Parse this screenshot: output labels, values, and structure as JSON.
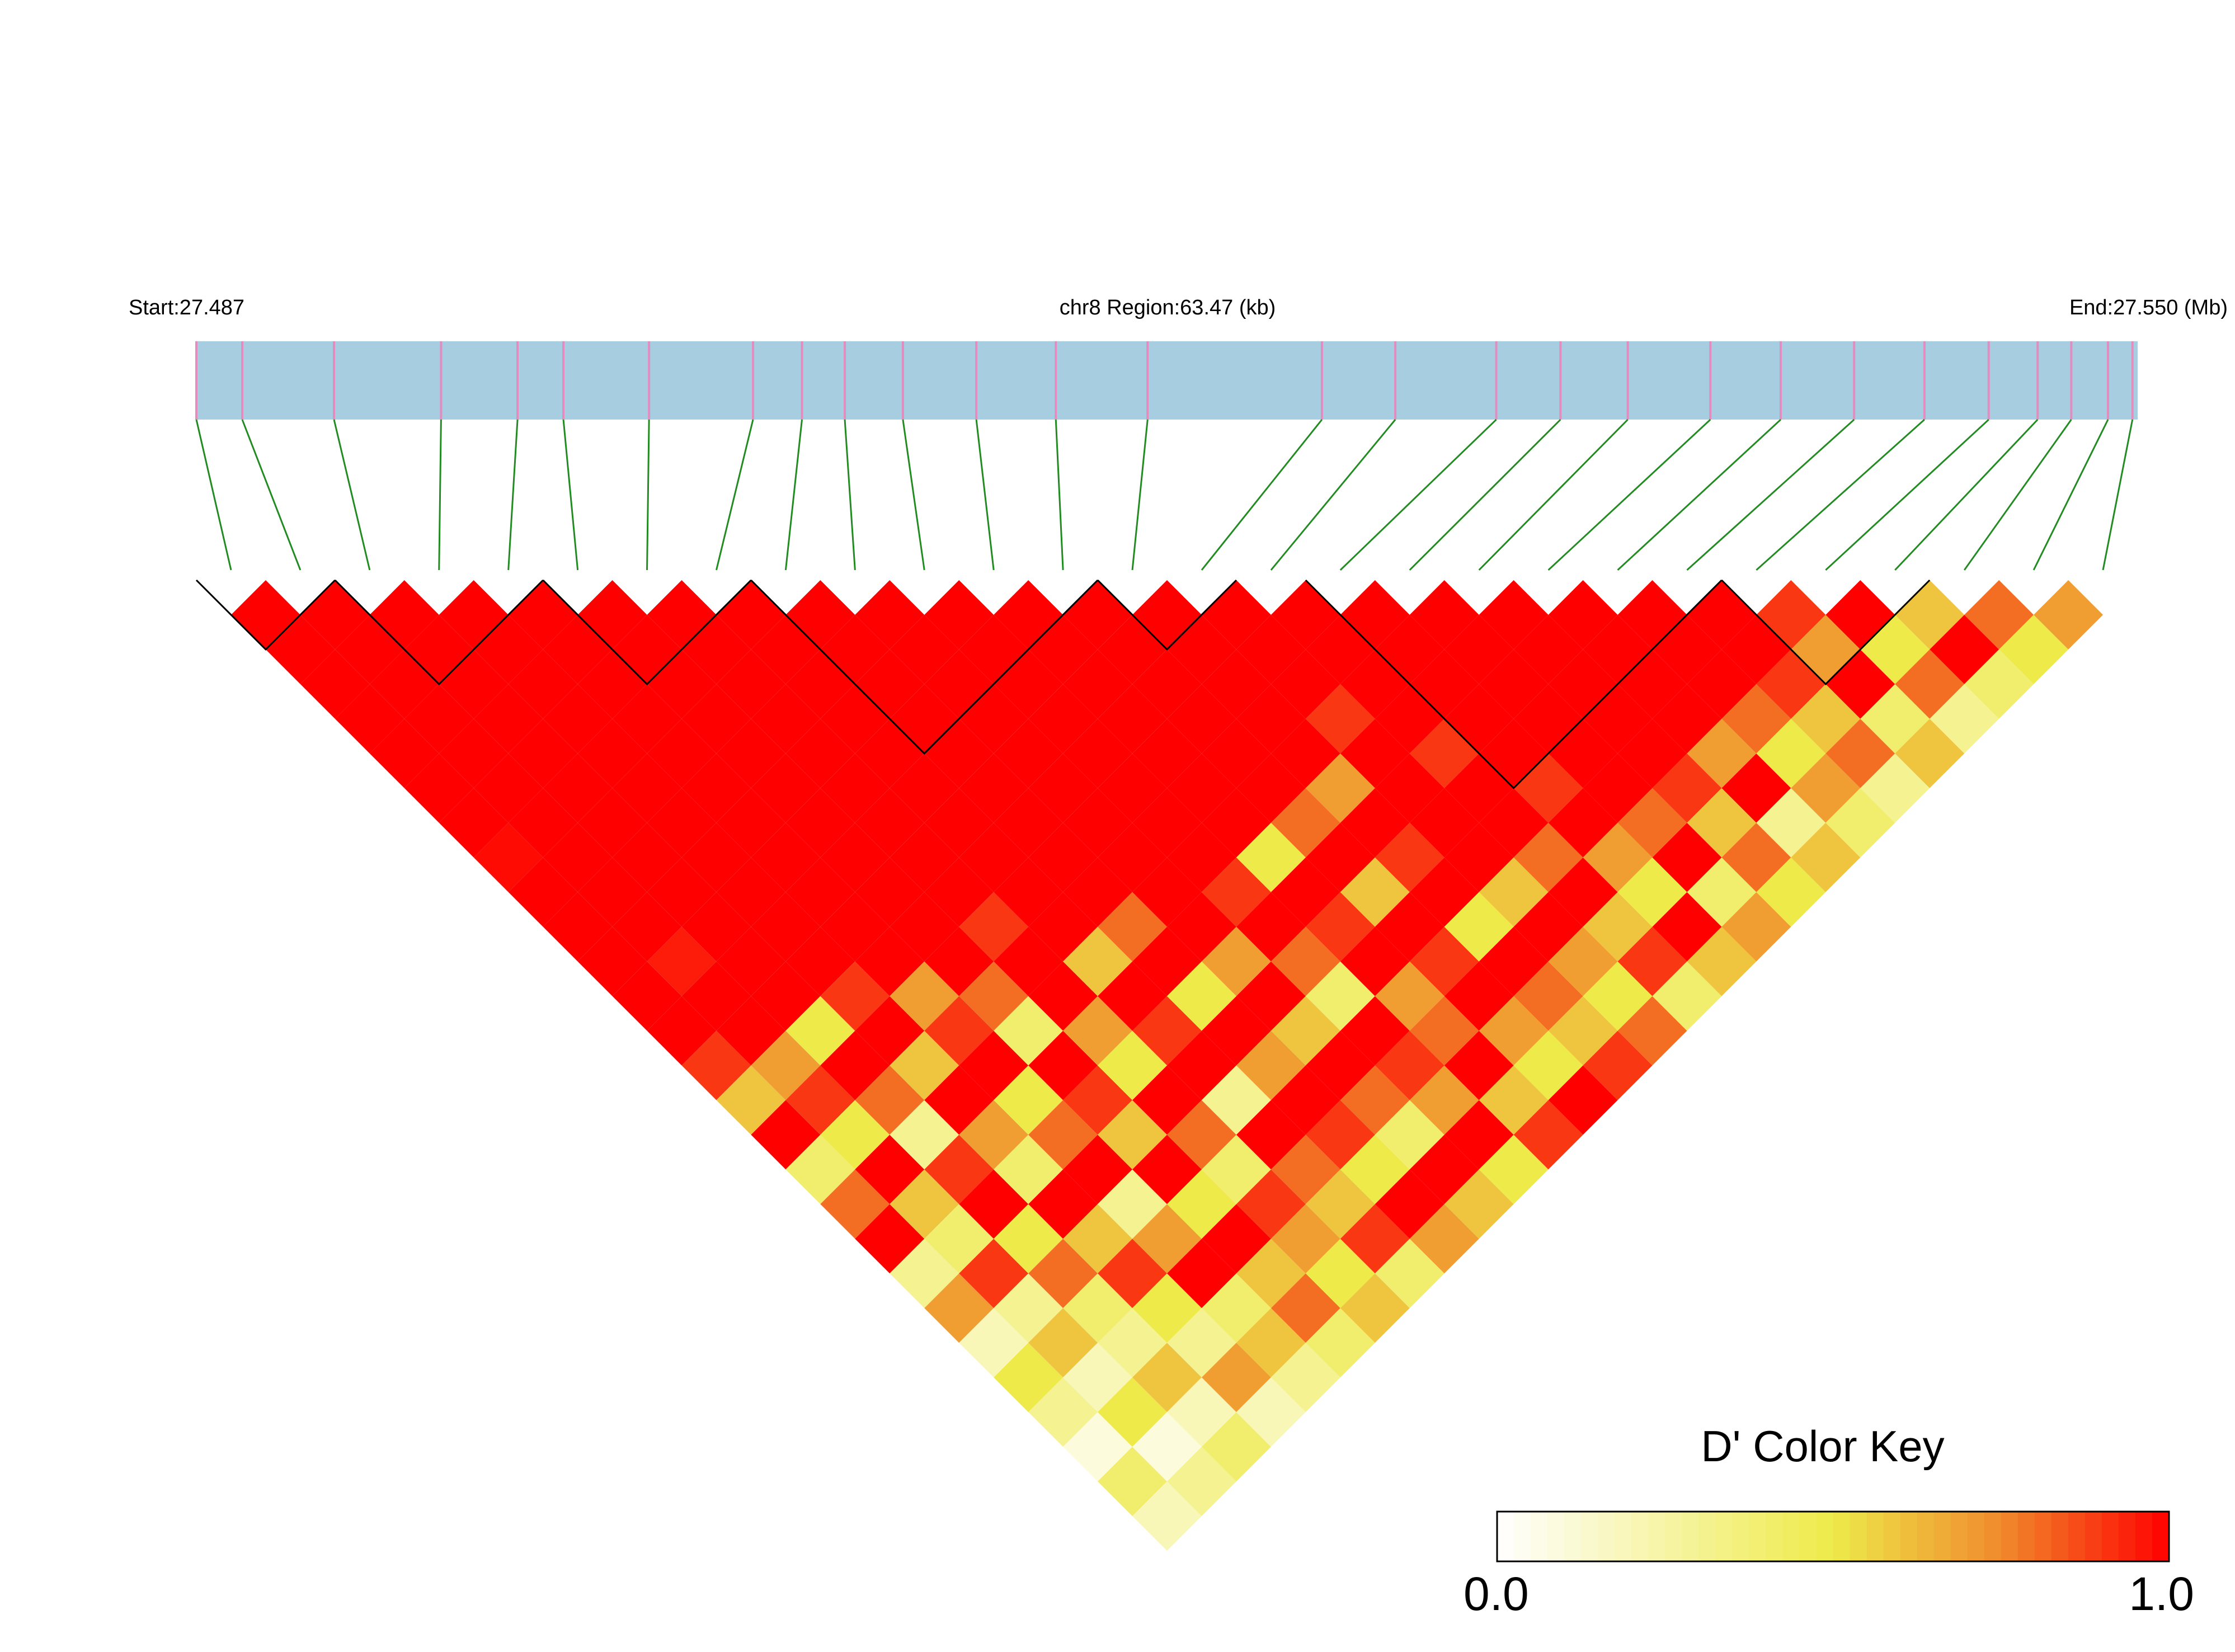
{
  "chart_data": {
    "type": "ld_heatmap",
    "start_label": "Start:27.487",
    "title": "chr8 Region:63.47 (kb)",
    "end_label": "End:27.550 (Mb)",
    "xlim": [
      27.487,
      27.55047
    ],
    "positions": [
      27.487,
      27.4885,
      27.4915,
      27.495,
      27.4975,
      27.499,
      27.5018,
      27.5052,
      27.5068,
      27.5082,
      27.5101,
      27.5125,
      27.5151,
      27.5181,
      27.5238,
      27.5262,
      27.5295,
      27.5316,
      27.5338,
      27.5365,
      27.5388,
      27.5412,
      27.5435,
      27.5456,
      27.5472,
      27.5483,
      27.5495,
      27.5503
    ],
    "ld": [
      [
        1,
        1,
        1,
        1,
        1,
        1,
        1,
        0.98,
        1,
        1,
        1,
        1,
        1,
        0.9,
        0.6,
        1,
        0.4,
        0.8,
        1,
        0.3,
        0.7,
        0.2,
        0.5,
        0.3,
        0.1,
        0.4,
        0.2
      ],
      [
        1,
        1,
        1,
        1,
        1,
        1,
        1,
        1,
        1,
        1,
        0.95,
        1,
        1,
        0.7,
        0.9,
        0.5,
        1,
        0.6,
        0.4,
        0.9,
        0.3,
        0.6,
        0.2,
        0.5,
        0.1,
        0.3
      ],
      [
        1,
        1,
        1,
        1,
        1,
        1,
        1,
        1,
        1,
        1,
        1,
        1,
        0.5,
        1,
        0.8,
        0.3,
        0.9,
        1,
        0.5,
        0.8,
        0.4,
        0.3,
        0.6,
        0.2,
        0.4
      ],
      [
        1,
        1,
        1,
        1,
        1,
        1,
        1,
        1,
        1,
        1,
        1,
        0.9,
        1,
        0.6,
        1,
        0.7,
        0.4,
        1,
        0.6,
        0.9,
        0.5,
        0.3,
        0.7,
        0.2
      ],
      [
        1,
        1,
        1,
        1,
        1,
        1,
        1,
        1,
        1,
        1,
        1,
        0.7,
        0.9,
        1,
        0.5,
        0.8,
        1,
        0.3,
        0.7,
        1,
        0.4,
        0.6,
        0.3
      ],
      [
        1,
        1,
        1,
        1,
        1,
        1,
        1,
        1,
        1,
        1,
        1,
        0.8,
        0.4,
        1,
        0.9,
        0.6,
        1,
        0.5,
        1,
        0.6,
        0.8,
        0.4
      ],
      [
        1,
        1,
        1,
        1,
        1,
        1,
        1,
        1,
        1,
        0.9,
        1,
        1,
        0.7,
        0.5,
        1,
        0.8,
        0.4,
        0.9,
        0.7,
        0.5,
        0.6
      ],
      [
        1,
        1,
        1,
        1,
        1,
        1,
        1,
        1,
        1,
        1,
        0.6,
        1,
        0.9,
        1,
        0.3,
        1,
        0.8,
        0.6,
        0.9,
        0.4
      ],
      [
        1,
        1,
        1,
        1,
        1,
        1,
        1,
        1,
        1,
        0.8,
        1,
        0.5,
        1,
        0.7,
        1,
        0.9,
        0.5,
        1,
        0.7
      ],
      [
        1,
        1,
        1,
        1,
        1,
        1,
        1,
        1,
        1,
        1,
        0.7,
        1,
        0.6,
        1,
        0.8,
        0.4,
        1,
        0.6
      ],
      [
        1,
        1,
        1,
        1,
        1,
        1,
        1,
        1,
        0.9,
        1,
        0.8,
        0.4,
        1,
        0.9,
        0.7,
        1,
        0.5
      ],
      [
        1,
        1,
        1,
        1,
        1,
        1,
        1,
        0.5,
        1,
        0.9,
        1,
        0.7,
        0.8,
        1,
        0.6,
        0.9
      ],
      [
        1,
        1,
        1,
        1,
        1,
        1,
        0.8,
        1,
        0.6,
        1,
        0.9,
        1,
        0.7,
        0.5,
        1
      ],
      [
        1,
        1,
        1,
        1,
        1,
        0.7,
        1,
        0.9,
        1,
        0.5,
        1,
        0.8,
        0.6,
        0.9
      ],
      [
        1,
        1,
        1,
        0.9,
        1,
        1,
        1,
        1,
        0.6,
        1,
        0.7,
        0.5,
        0.8
      ],
      [
        1,
        1,
        1,
        1,
        0.9,
        1,
        1,
        0.8,
        1,
        0.6,
        0.9,
        0.4
      ],
      [
        1,
        1,
        1,
        1,
        1,
        0.9,
        1,
        0.7,
        0.5,
        1,
        0.6
      ],
      [
        1,
        1,
        1,
        1,
        1,
        1,
        0.8,
        1,
        0.4,
        0.7
      ],
      [
        1,
        1,
        1,
        1,
        1,
        0.9,
        0.6,
        0.8,
        0.5
      ],
      [
        1,
        1,
        1,
        1,
        0.7,
        1,
        0.3,
        0.6
      ],
      [
        1,
        1,
        1,
        0.8,
        0.5,
        0.7,
        0.4
      ],
      [
        1,
        1,
        0.9,
        0.6,
        0.8,
        0.3
      ],
      [
        0.9,
        0.7,
        1,
        0.4,
        0.6
      ],
      [
        1,
        0.5,
        0.8,
        0.3
      ],
      [
        0.6,
        1,
        0.4
      ],
      [
        0.8,
        0.5
      ],
      [
        0.7
      ]
    ],
    "blocks": [
      [
        0,
        1
      ],
      [
        2,
        4
      ],
      [
        5,
        7
      ],
      [
        8,
        12
      ],
      [
        13,
        14
      ],
      [
        16,
        21
      ],
      [
        22,
        24
      ]
    ],
    "bar_color": "#a6cde0",
    "marker_color": "#e48cc0",
    "connector_color": "#228b22",
    "block_color": "#000000",
    "colorscale": [
      [
        0,
        "#ffffff"
      ],
      [
        0.5,
        "#eeea4a"
      ],
      [
        0.75,
        "#f08a2c"
      ],
      [
        1,
        "#ff0000"
      ]
    ],
    "legend_title": "D' Color Key",
    "clim": [
      0,
      1
    ],
    "cticks": [
      {
        "value": 0,
        "label": "0.0"
      },
      {
        "value": 1,
        "label": "1.0"
      }
    ]
  }
}
